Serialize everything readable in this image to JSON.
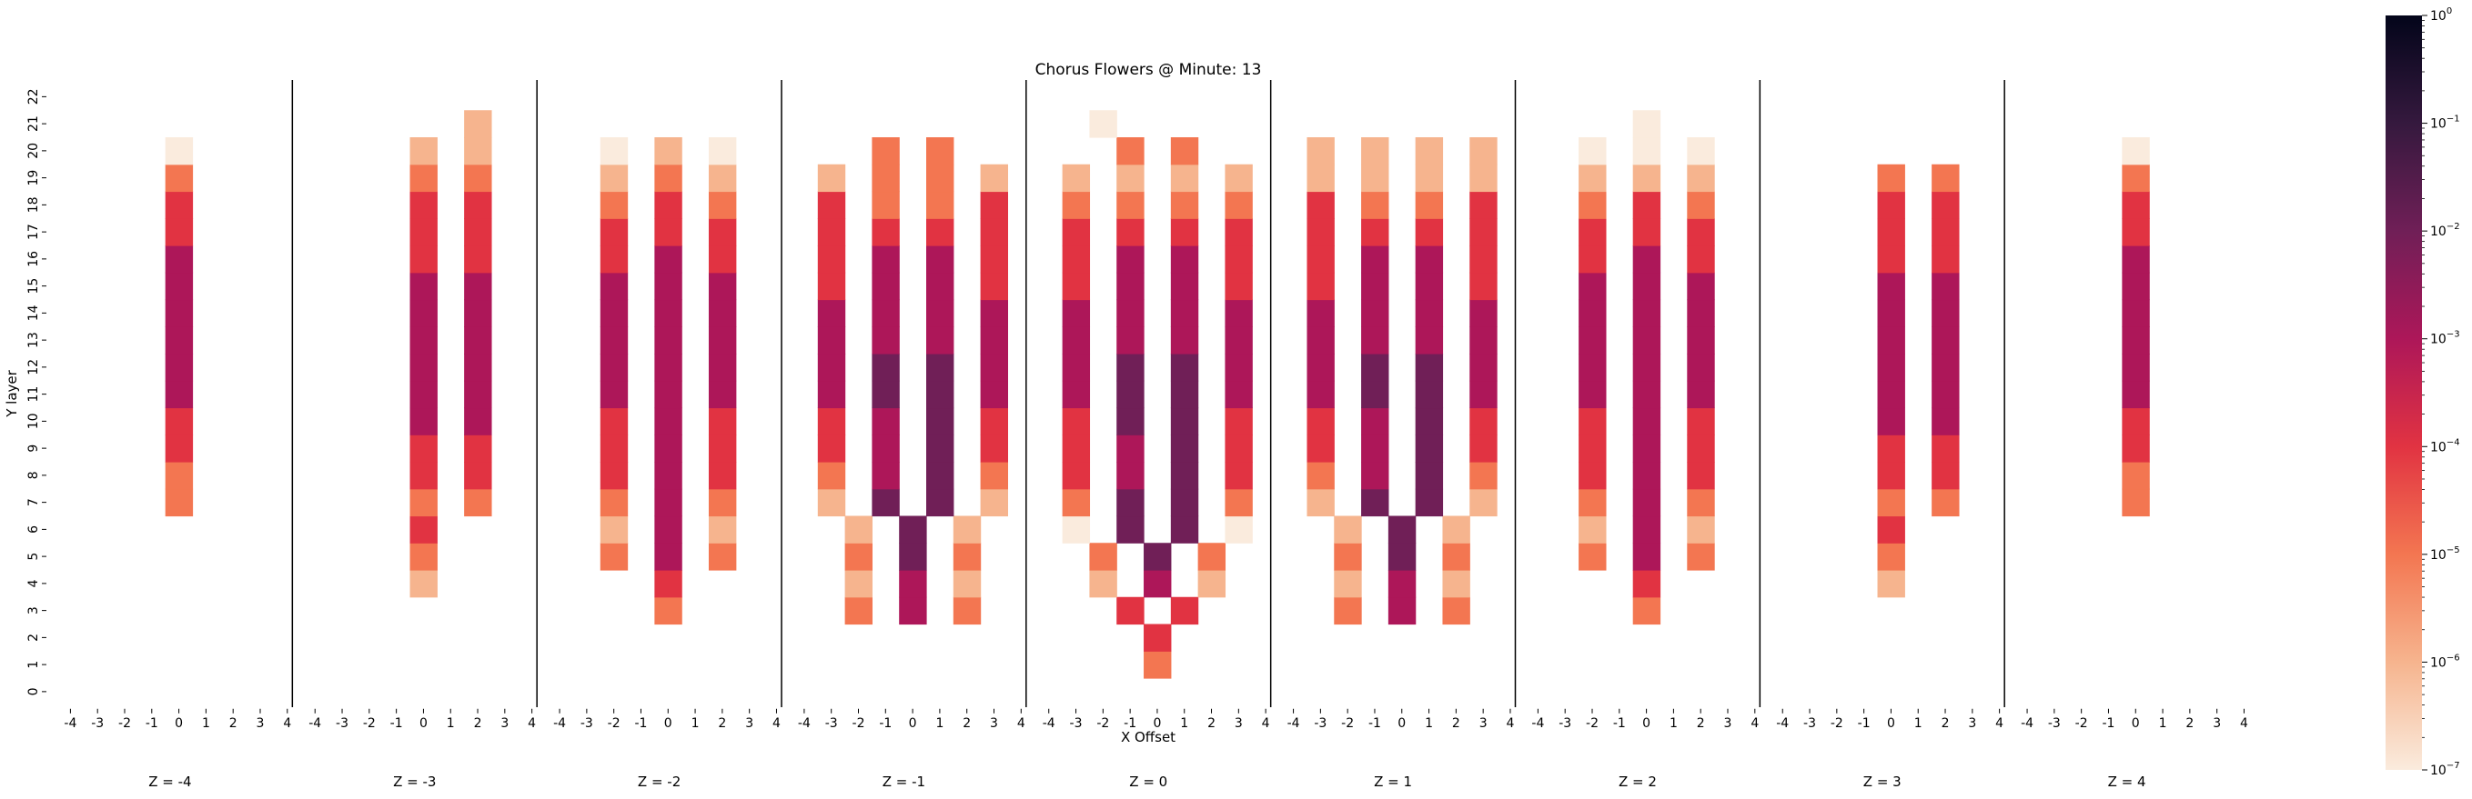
{
  "chart_data": {
    "type": "heatmap",
    "title": "Chorus Flowers @ Minute: 13",
    "xlabel": "X Offset",
    "ylabel": "Y layer",
    "x_ticks": [
      "-4",
      "-3",
      "-2",
      "-1",
      "0",
      "1",
      "2",
      "3",
      "4"
    ],
    "y_ticks": [
      "0",
      "1",
      "2",
      "3",
      "4",
      "5",
      "6",
      "7",
      "8",
      "9",
      "10",
      "11",
      "12",
      "13",
      "14",
      "15",
      "16",
      "17",
      "18",
      "19",
      "20",
      "21",
      "22"
    ],
    "panels": [
      "Z = -4",
      "Z = -3",
      "Z = -2",
      "Z = -1",
      "Z = 0",
      "Z = 1",
      "Z = 2",
      "Z = 3",
      "Z = 4"
    ],
    "color_scale": "log",
    "vmin_exponent": -7,
    "vmax_exponent": 0,
    "colorbar_ticks": [
      {
        "base": "10",
        "exp": "0"
      },
      {
        "base": "10",
        "exp": "−1"
      },
      {
        "base": "10",
        "exp": "−2"
      },
      {
        "base": "10",
        "exp": "−3"
      },
      {
        "base": "10",
        "exp": "−4"
      },
      {
        "base": "10",
        "exp": "−5"
      },
      {
        "base": "10",
        "exp": "−6"
      },
      {
        "base": "10",
        "exp": "−7"
      }
    ],
    "colormap": [
      "#faebdd",
      "#f6b48e",
      "#f37651",
      "#e13342",
      "#ad1759",
      "#701f57",
      "#35193e",
      "#03051a"
    ],
    "value_key": "log10 fraction; one string per Y layer (0 first), one character per X offset (-4..4); '.' = empty, digit d = 10^-d",
    "cells": [
      [
        ".........",
        ".........",
        ".........",
        ".........",
        ".........",
        ".........",
        ".........",
        "....5....",
        "....5....",
        "....4....",
        "....4....",
        "....3....",
        "....3....",
        "....3....",
        "....3....",
        "....3....",
        "....3....",
        "....4....",
        "....4....",
        "....5....",
        "....7....",
        ".........",
        "........."
      ],
      [
        ".........",
        ".........",
        ".........",
        ".........",
        "....6....",
        "....5....",
        "....4....",
        "....5.5..",
        "....4.4..",
        "....4.4..",
        "....3.3..",
        "....3.3..",
        "....3.3..",
        "....3.3..",
        "....3.3..",
        "....3.3..",
        "....4.4..",
        "....4.4..",
        "....4.4..",
        "....5.5..",
        "....6.6..",
        "......6..",
        "........."
      ],
      [
        ".........",
        ".........",
        ".........",
        "....5....",
        "....4....",
        "..5.3.5..",
        "..6.3.6..",
        "..5.3.5..",
        "..4.3.4..",
        "..4.3.4..",
        "..4.3.4..",
        "..3.3.3..",
        "..3.3.3..",
        "..3.3.3..",
        "..3.3.3..",
        "..3.3.3..",
        "..4.3.4..",
        "..4.4.4..",
        "..5.4.5..",
        "..6.5.6..",
        "..7.6.7..",
        ".........",
        "........."
      ],
      [
        ".........",
        ".........",
        ".........",
        "..5.3.5..",
        "..6.3.6..",
        "..5.2.5..",
        "..6.2.6..",
        ".6.2.2.6.",
        ".5.3.2.5.",
        ".4.3.2.4.",
        ".4.3.2.4.",
        ".3.2.2.3.",
        ".3.2.2.3.",
        ".3.3.3.3.",
        ".3.3.3.3.",
        ".4.3.3.4.",
        ".4.3.3.4.",
        ".4.4.4.4.",
        ".4.5.5.4.",
        ".6.5.5.6.",
        "...5.5...",
        ".........",
        "........."
      ],
      [
        ".........",
        "....5....",
        "....4....",
        "...4.4...",
        "..6.3.6..",
        "..5.2.5..",
        ".7.2.2.7.",
        ".5.2.2.5.",
        ".4.3.2.4.",
        ".4.3.2.4.",
        ".4.2.2.4.",
        ".3.2.2.3.",
        ".3.2.2.3.",
        ".3.3.3.3.",
        ".3.3.3.3.",
        ".4.3.3.4.",
        ".4.3.3.4.",
        ".4.4.4.4.",
        ".5.5.5.5.",
        ".6.6.6.6.",
        "...5.5...",
        "..7......",
        "........."
      ],
      [
        ".........",
        ".........",
        ".........",
        "..5.3.5..",
        "..6.3.6..",
        "..5.2.5..",
        "..6.2.6..",
        ".6.2.2.6.",
        ".5.3.2.5.",
        ".4.3.2.4.",
        ".4.3.2.4.",
        ".3.2.2.3.",
        ".3.2.2.3.",
        ".3.3.3.3.",
        ".3.3.3.3.",
        ".4.3.3.4.",
        ".4.3.3.4.",
        ".4.4.4.4.",
        ".4.5.5.4.",
        ".6.6.6.6.",
        ".6.6.6.6.",
        ".........",
        "........."
      ],
      [
        ".........",
        ".........",
        ".........",
        "....5....",
        "....4....",
        "..5.3.5..",
        "..6.3.6..",
        "..5.3.5..",
        "..4.3.4..",
        "..4.3.4..",
        "..4.3.4..",
        "..3.3.3..",
        "..3.3.3..",
        "..3.3.3..",
        "..3.3.3..",
        "..3.3.3..",
        "..4.3.4..",
        "..4.4.4..",
        "..5.4.5..",
        "..6.6.6..",
        "..7.7.7..",
        "....7....",
        "........."
      ],
      [
        ".........",
        ".........",
        ".........",
        ".........",
        "....6....",
        "....5....",
        "....4....",
        "....5.5..",
        "....4.4..",
        "....4.4..",
        "....3.3..",
        "....3.3..",
        "....3.3..",
        "....3.3..",
        "....3.3..",
        "....3.3..",
        "....4.4..",
        "....4.4..",
        "....4.4..",
        "....5.5..",
        ".........",
        ".........",
        "........."
      ],
      [
        ".........",
        ".........",
        ".........",
        ".........",
        ".........",
        ".........",
        ".........",
        "....5....",
        "....5....",
        "....4....",
        "....4....",
        "....3....",
        "....3....",
        "....3....",
        "....3....",
        "....3....",
        "....3....",
        "....4....",
        "....4....",
        "....5....",
        "....7....",
        ".........",
        "........."
      ]
    ]
  }
}
